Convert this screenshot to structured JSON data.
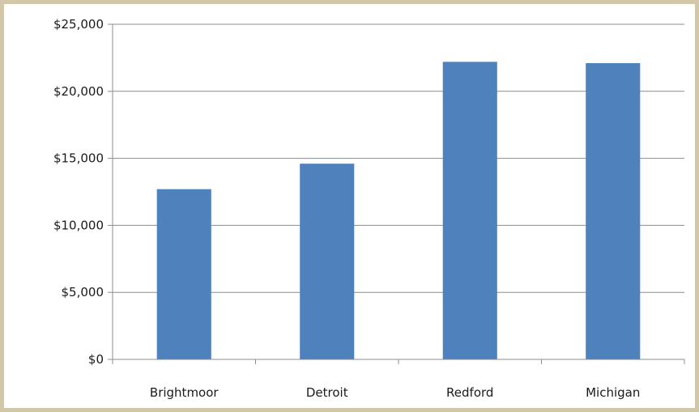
{
  "chart_data": {
    "type": "bar",
    "title": "",
    "xlabel": "",
    "ylabel": "",
    "categories": [
      "Brightmoor",
      "Detroit",
      "Redford",
      "Michigan"
    ],
    "values": [
      12700,
      14600,
      22200,
      22100
    ],
    "ylim": [
      0,
      25000
    ],
    "yticks": [
      0,
      5000,
      10000,
      15000,
      20000,
      25000
    ],
    "ytick_labels": [
      "$0",
      "$5,000",
      "$10,000",
      "$15,000",
      "$20,000",
      "$25,000"
    ],
    "grid": true,
    "legend": "none",
    "colors": {
      "bar": "#4f81bd",
      "grid": "#8c8c8c",
      "axis": "#8c8c8c",
      "border": "#d2c7a8"
    }
  }
}
